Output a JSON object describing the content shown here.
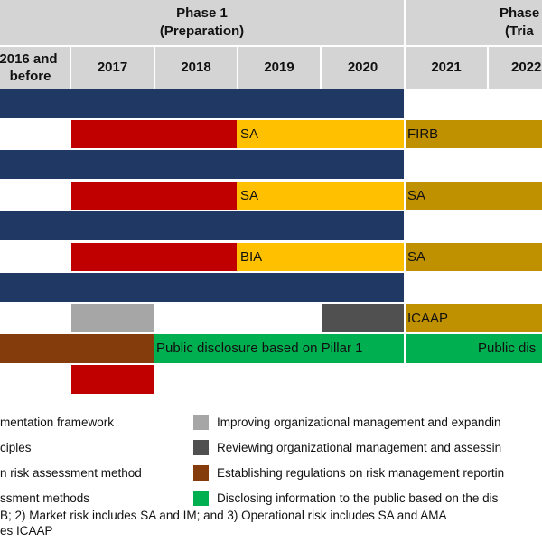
{
  "header": {
    "phase1": {
      "title": "Phase 1",
      "subtitle": "(Preparation)"
    },
    "phase2": {
      "title": "Phase",
      "subtitle": "(Tria"
    },
    "years": [
      "2016 and before",
      "2017",
      "2018",
      "2019",
      "2020",
      "2021",
      "2022"
    ],
    "first_col_line1": "2016 and",
    "first_col_line2": "before"
  },
  "colors": {
    "navy": "#1f3864",
    "red": "#c00000",
    "yellow": "#ffc000",
    "gold": "#bf9000",
    "gray_light": "#a6a6a6",
    "gray_dark": "#505050",
    "brown": "#843c0c",
    "green": "#00b050",
    "header": "#d4d4d4"
  },
  "rows": {
    "credit_label_phase1": "SA",
    "credit_label_phase2": "FIRB",
    "market_label_phase1": "SA",
    "market_label_phase2": "SA",
    "operational_label_phase1": "BIA",
    "operational_label_phase2": "SA",
    "icaap_label": "ICAAP",
    "disclosure_phase1": "Public disclosure based on Pillar 1",
    "disclosure_phase2": "Public dis"
  },
  "legend": {
    "left": [
      "mentation framework",
      "ciples",
      "n risk assessment method",
      "ssment methods"
    ],
    "right": [
      "Improving organizational management and expandin",
      "Reviewing organizational management and assessin",
      "Establishing regulations on risk management reportin",
      "Disclosing information to the public based on the dis"
    ]
  },
  "notes": {
    "line1": "B; 2) Market risk includes SA and IM; and 3) Operational risk includes SA and AMA",
    "line2": "es ICAAP"
  }
}
